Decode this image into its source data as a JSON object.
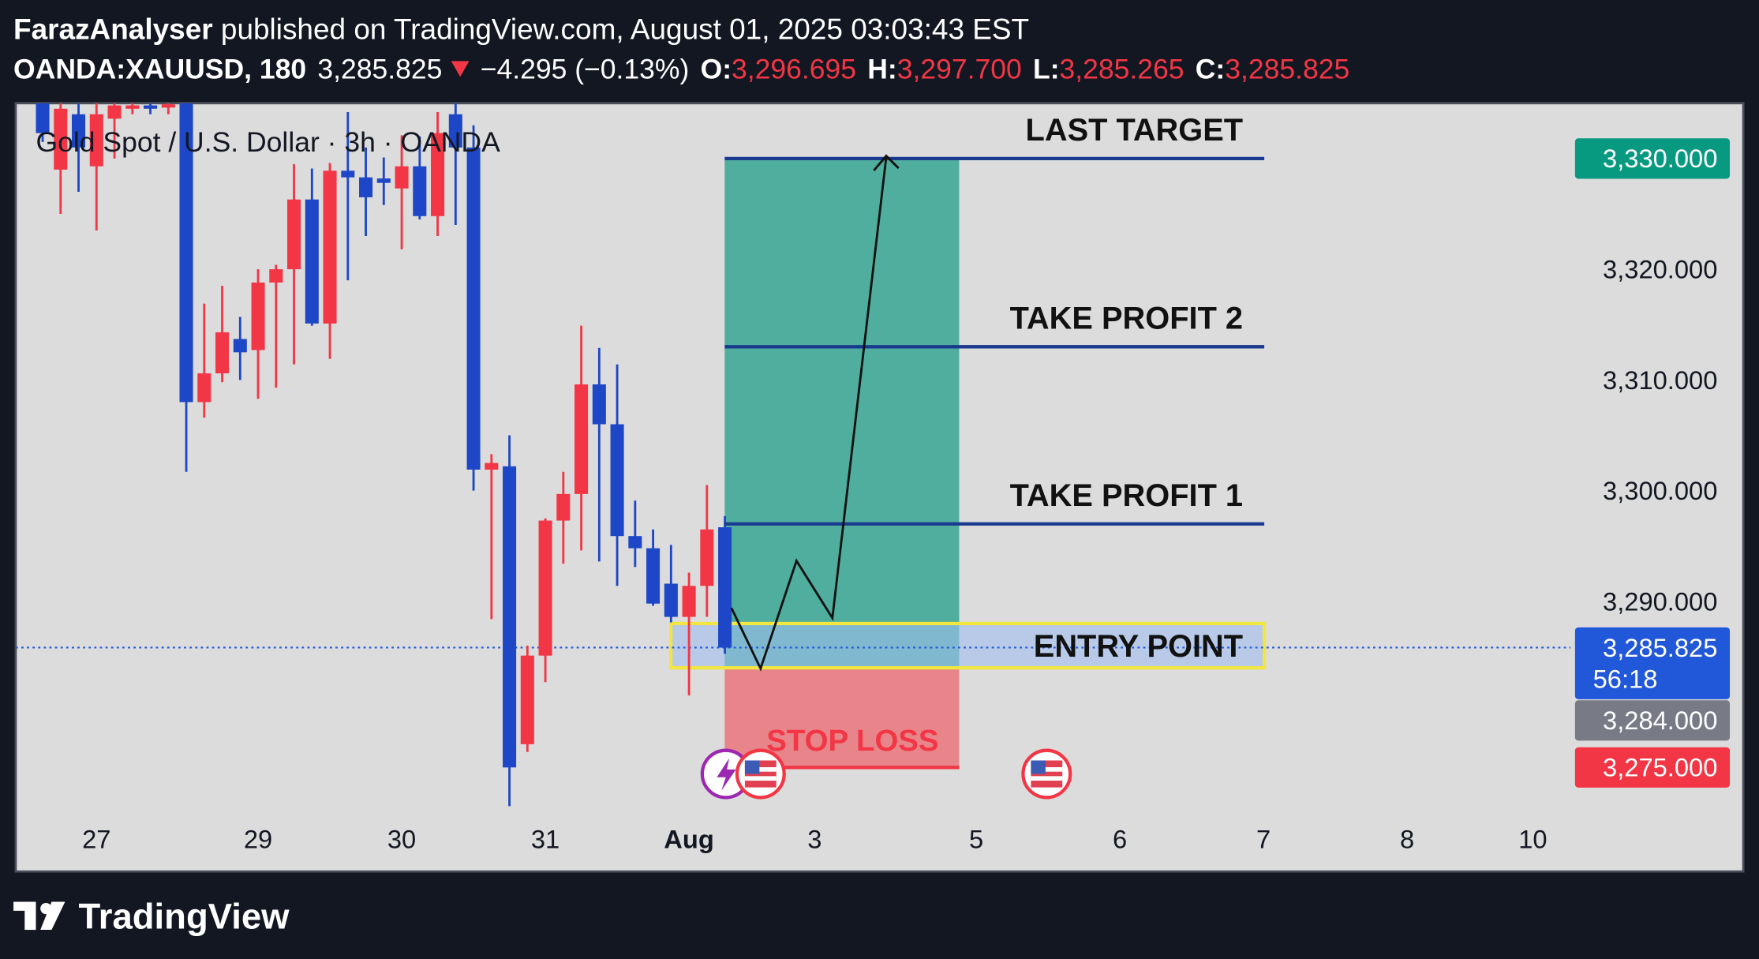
{
  "header": {
    "publisher": "FarazAnalyser",
    "published": "published on TradingView.com, August 01, 2025 03:03:43 EST",
    "symbol": "OANDA:XAUUSD, 180",
    "last": "3,285.825",
    "change": "−4.295 (−0.13%)",
    "ohlc": [
      {
        "key": "O:",
        "value": "3,296.695"
      },
      {
        "key": "H:",
        "value": "3,297.700"
      },
      {
        "key": "L:",
        "value": "3,285.265"
      },
      {
        "key": "C:",
        "value": "3,285.825"
      }
    ]
  },
  "chart_data": {
    "type": "candlestick",
    "title": "Gold Spot / U.S. Dollar · 3h · OANDA",
    "up_color": "#f23645",
    "down_color": "#1e47c8",
    "x": [
      1.5,
      2.5,
      3.5,
      4.5,
      5.5,
      6.5,
      7.5,
      8.5,
      9.5,
      10.5,
      11.5,
      12.5,
      13.5,
      14.5,
      15.5,
      16.5,
      17.5,
      18.5,
      19.5,
      20.5,
      21.5,
      22.5,
      23.5,
      24.5,
      25.5,
      26.5,
      27.5,
      28.5,
      29.5,
      30.5,
      31.5,
      32.5,
      33.5,
      34.5,
      35.5,
      36.5,
      37.5,
      38.5,
      39.5
    ],
    "open": [
      3335,
      3329,
      3334,
      3329.3,
      3333.6,
      3334.5,
      3334.8,
      3334.6,
      3335,
      3308,
      3310.6,
      3313.7,
      3312.7,
      3318.8,
      3320,
      3326.3,
      3315.1,
      3328.9,
      3328.3,
      3328.2,
      3327.3,
      3329.3,
      3324.8,
      3334,
      3331,
      3301.9,
      3302.2,
      3277.1,
      3285.1,
      3297.3,
      3299.7,
      3309.6,
      3306,
      3295.9,
      3294.8,
      3291.6,
      3288.6,
      3291.4,
      3296.695
    ],
    "high": [
      3335,
      3335,
      3335,
      3335,
      3335,
      3335,
      3335,
      3335,
      3335,
      3316.9,
      3318.5,
      3315.7,
      3320,
      3320.4,
      3329.5,
      3329.1,
      3329.6,
      3334.2,
      3331,
      3330.1,
      3332.1,
      3332,
      3334.2,
      3335,
      3333,
      3303.3,
      3305,
      3286,
      3297.5,
      3301.7,
      3314.9,
      3312.9,
      3311.4,
      3299.1,
      3296.5,
      3295.1,
      3292.6,
      3300.5,
      3297.7
    ],
    "low": [
      3331.5,
      3325,
      3327,
      3323.5,
      3330,
      3334,
      3334,
      3334,
      3301.7,
      3306.6,
      3309.8,
      3310,
      3308.3,
      3309.3,
      3311.4,
      3314.9,
      3311.9,
      3319,
      3323,
      3325.8,
      3321.8,
      3324.5,
      3323,
      3324,
      3300,
      3288.4,
      3271.5,
      3276.4,
      3282.7,
      3293.4,
      3294.6,
      3293.6,
      3291.4,
      3293.1,
      3289.6,
      3288.1,
      3281.5,
      3288.6,
      3285.265
    ],
    "close": [
      3332.3,
      3334.5,
      3331,
      3334,
      3334.8,
      3334.8,
      3334.5,
      3334.9,
      3308,
      3310.6,
      3314.3,
      3312.5,
      3318.8,
      3320,
      3326.3,
      3315.1,
      3328.9,
      3328.3,
      3326.5,
      3327.8,
      3329.3,
      3324.8,
      3332.3,
      3331,
      3301.9,
      3302.5,
      3275,
      3285.1,
      3297.3,
      3299.7,
      3309.6,
      3306,
      3295.9,
      3294.8,
      3289.8,
      3288.6,
      3291.4,
      3296.5,
      3285.825
    ],
    "xlim": [
      0,
      86.6
    ],
    "ylim": [
      3265.6,
      3335
    ],
    "xticks": [
      {
        "value": 4.5,
        "label": "27"
      },
      {
        "value": 13.5,
        "label": "29"
      },
      {
        "value": 21.5,
        "label": "30"
      },
      {
        "value": 29.5,
        "label": "31"
      },
      {
        "value": 37.5,
        "label": "Aug",
        "bold": true
      },
      {
        "value": 44.5,
        "label": "3"
      },
      {
        "value": 53.5,
        "label": "5"
      },
      {
        "value": 61.5,
        "label": "6"
      },
      {
        "value": 69.5,
        "label": "7"
      },
      {
        "value": 77.5,
        "label": "8"
      },
      {
        "value": 84.5,
        "label": "10"
      }
    ],
    "yticks": [
      {
        "value": 3290,
        "label": "3,290.000"
      },
      {
        "value": 3300,
        "label": "3,300.000"
      },
      {
        "value": 3310,
        "label": "3,310.000"
      },
      {
        "value": 3320,
        "label": "3,320.000"
      }
    ],
    "last_price": 3285.825,
    "price_labels": [
      {
        "value": 3330,
        "label": "3,330.000",
        "color": "#089981"
      },
      {
        "value": 3285.825,
        "label": "3,285.825",
        "sublabel": "56:18",
        "color": "#2157d9"
      },
      {
        "value": 3284,
        "label": "3,284.000",
        "color": "#787b86"
      },
      {
        "value": 3275,
        "label": "3,275.000",
        "color": "#f23645"
      }
    ],
    "position": {
      "target": 3330,
      "entry": 3284,
      "stop": 3275,
      "profit_color": "#4fae9d",
      "loss_color": "#e8858b",
      "loss_label": "STOP LOSS"
    },
    "levels": [
      {
        "label": "LAST TARGET",
        "value": 3330
      },
      {
        "label": "TAKE PROFIT 2",
        "value": 3313
      },
      {
        "label": "TAKE PROFIT 1",
        "value": 3297
      }
    ],
    "entry_zone": {
      "label": "ENTRY POINT",
      "low": 3284,
      "high": 3288
    }
  },
  "footer": {
    "brand": "TradingView"
  }
}
